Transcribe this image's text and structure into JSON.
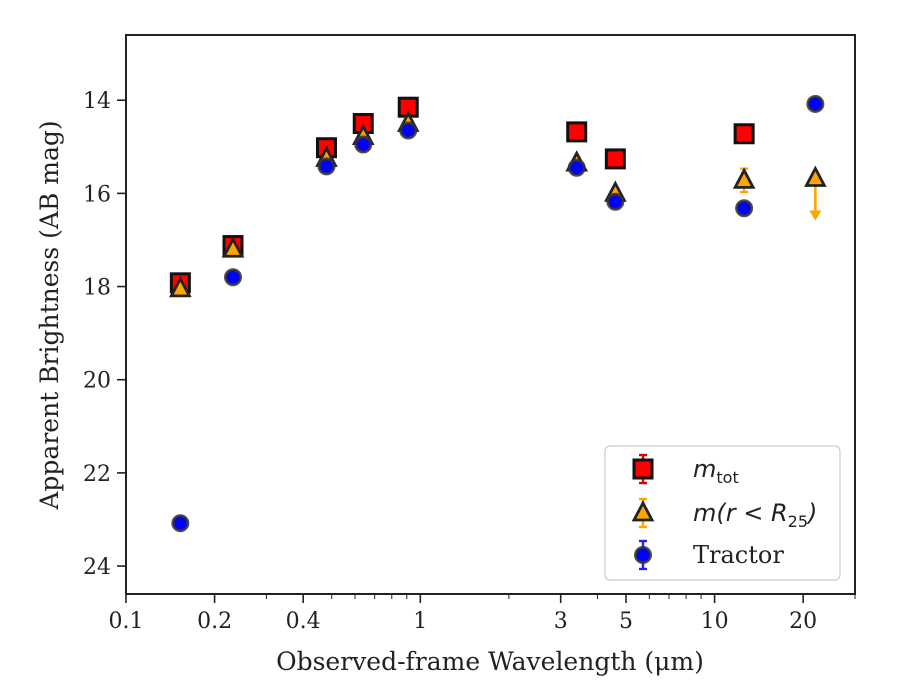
{
  "chart_data": {
    "type": "scatter",
    "xlabel": "Observed-frame Wavelength (μm)",
    "ylabel": "Apparent Brightness (AB mag)",
    "xscale": "log",
    "xlim": [
      0.1,
      30
    ],
    "ylim": [
      24.6,
      12.6
    ],
    "y_inverted": true,
    "grid": false,
    "legend_position": "lower-right",
    "x_ticks": [
      0.1,
      0.2,
      0.4,
      1,
      3,
      5,
      10,
      20
    ],
    "x_tick_labels": [
      "0.1",
      "0.2",
      "0.4",
      "1",
      "3",
      "5",
      "10",
      "20"
    ],
    "y_ticks": [
      14,
      16,
      18,
      20,
      22,
      24
    ],
    "y_tick_labels": [
      "14",
      "16",
      "18",
      "20",
      "22",
      "24"
    ],
    "series": [
      {
        "name_main": "m",
        "name_sub": "tot",
        "marker": "square",
        "color": "#ff0000",
        "ecolor": "#dd0000",
        "edge": "#111111",
        "points": [
          {
            "x": 0.153,
            "y": 17.92
          },
          {
            "x": 0.231,
            "y": 17.12
          },
          {
            "x": 0.48,
            "y": 15.02
          },
          {
            "x": 0.64,
            "y": 14.5
          },
          {
            "x": 0.91,
            "y": 14.15
          },
          {
            "x": 3.4,
            "y": 14.68
          },
          {
            "x": 4.6,
            "y": 15.26
          },
          {
            "x": 12.6,
            "y": 14.72
          }
        ]
      },
      {
        "name_main": "m(r < R",
        "name_sub": "25",
        "name_close": ")",
        "marker": "triangle",
        "color": "#ffa500",
        "ecolor": "#ffa500",
        "edge": "#222222",
        "points": [
          {
            "x": 0.153,
            "y": 18.05
          },
          {
            "x": 0.231,
            "y": 17.2
          },
          {
            "x": 0.48,
            "y": 15.25
          },
          {
            "x": 0.64,
            "y": 14.78
          },
          {
            "x": 0.91,
            "y": 14.5
          },
          {
            "x": 3.4,
            "y": 15.35
          },
          {
            "x": 4.6,
            "y": 16.0
          },
          {
            "x": 12.6,
            "y": 15.72,
            "err": 0.25
          },
          {
            "x": 22.0,
            "y": 15.68,
            "upper_limit": true
          }
        ]
      },
      {
        "name": "Tractor",
        "marker": "circle",
        "color": "#0000ff",
        "ecolor": "#2222ee",
        "edge": "#333333",
        "points": [
          {
            "x": 0.153,
            "y": 23.08
          },
          {
            "x": 0.231,
            "y": 17.8
          },
          {
            "x": 0.48,
            "y": 15.42
          },
          {
            "x": 0.64,
            "y": 14.95
          },
          {
            "x": 0.91,
            "y": 14.65
          },
          {
            "x": 3.4,
            "y": 15.45
          },
          {
            "x": 4.6,
            "y": 16.18
          },
          {
            "x": 12.6,
            "y": 16.32
          },
          {
            "x": 22.0,
            "y": 14.08
          }
        ]
      }
    ]
  }
}
